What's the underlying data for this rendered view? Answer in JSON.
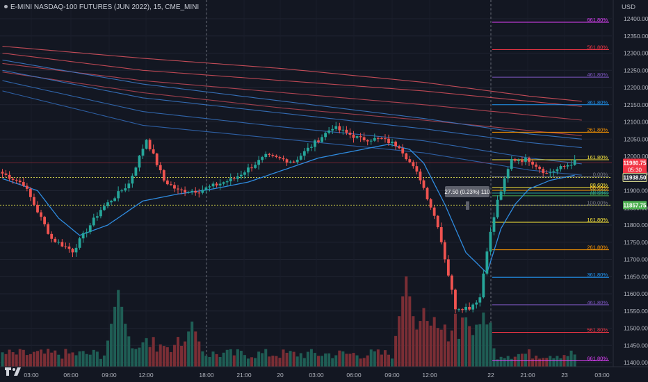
{
  "header": {
    "title": "E-MINI NASDAQ-100 FUTURES (JUN 2022), 15, CME_MINI",
    "currency": "USD"
  },
  "price_tags": [
    {
      "label": "11980.75",
      "sub": "05:30",
      "price": 11980.75,
      "bg": "#f23645"
    },
    {
      "label": "11938.50",
      "price": 11938.5,
      "bg": "#2a2e39",
      "border": "#d4d48a"
    },
    {
      "label": "11857.75",
      "price": 11857.75,
      "bg": "#4caf50"
    }
  ],
  "measure_label": "27.50 (0.23%) 110",
  "logo": "tradingview-logo",
  "chart_data": {
    "type": "candlestick",
    "title": "",
    "ylim": [
      11375,
      12425
    ],
    "y_ticks": [
      11400,
      11450,
      11500,
      11550,
      11600,
      11650,
      11700,
      11750,
      11800,
      11850,
      11900,
      11950,
      12000,
      12050,
      12100,
      12150,
      12200,
      12250,
      12300,
      12350,
      12400
    ],
    "x_ticks": [
      "03:00",
      "06:00",
      "09:00",
      "12:00",
      "18:00",
      "21:00",
      "20",
      "03:00",
      "06:00",
      "09:00",
      "12:00",
      "22",
      "21:00",
      "23",
      "03:00"
    ],
    "session_separators": [
      "18:00",
      "22"
    ],
    "horizontal_lines": [
      {
        "price": 11938.5,
        "style": "dotted",
        "color": "#c8c84a"
      },
      {
        "price": 11857.75,
        "style": "dotted",
        "color": "#c8c84a"
      }
    ],
    "price_waypoints": [
      {
        "i": 0,
        "p": 11950
      },
      {
        "i": 6,
        "p": 11920
      },
      {
        "i": 14,
        "p": 11760
      },
      {
        "i": 20,
        "p": 11725
      },
      {
        "i": 28,
        "p": 11845
      },
      {
        "i": 36,
        "p": 11920
      },
      {
        "i": 41,
        "p": 12050
      },
      {
        "i": 46,
        "p": 11930
      },
      {
        "i": 50,
        "p": 11900
      },
      {
        "i": 56,
        "p": 11900
      },
      {
        "i": 66,
        "p": 11935
      },
      {
        "i": 75,
        "p": 12000
      },
      {
        "i": 83,
        "p": 11985
      },
      {
        "i": 94,
        "p": 12085
      },
      {
        "i": 102,
        "p": 12050
      },
      {
        "i": 108,
        "p": 12050
      },
      {
        "i": 113,
        "p": 12030
      },
      {
        "i": 119,
        "p": 11935
      },
      {
        "i": 124,
        "p": 11800
      },
      {
        "i": 129,
        "p": 11560
      },
      {
        "i": 133,
        "p": 11560
      },
      {
        "i": 136,
        "p": 11590
      },
      {
        "i": 138,
        "p": 11730
      },
      {
        "i": 141,
        "p": 11870
      },
      {
        "i": 145,
        "p": 11990
      },
      {
        "i": 150,
        "p": 11990
      },
      {
        "i": 155,
        "p": 11950
      },
      {
        "i": 160,
        "p": 11970
      },
      {
        "i": 163,
        "p": 11985
      }
    ],
    "volume_peaks": [
      {
        "i": 33,
        "v": 0.85
      },
      {
        "i": 34,
        "v": 0.6
      },
      {
        "i": 54,
        "v": 0.5
      },
      {
        "i": 115,
        "v": 1.0
      },
      {
        "i": 120,
        "v": 0.65
      },
      {
        "i": 123,
        "v": 0.55
      },
      {
        "i": 135,
        "v": 0.45
      },
      {
        "i": 137,
        "v": 0.6
      }
    ],
    "fib_lines": [
      {
        "label": "661.80%",
        "price": 11405,
        "color": "#e040fb"
      },
      {
        "label": "561.80%",
        "price": 11488,
        "color": "#f23645"
      },
      {
        "label": "461.80%",
        "price": 11568,
        "color": "#7e57c2"
      },
      {
        "label": "361.80%",
        "price": 11648,
        "color": "#2196f3"
      },
      {
        "label": "261.80%",
        "price": 11728,
        "color": "#ff9800"
      },
      {
        "label": "161.80%",
        "price": 11808,
        "color": "#ffeb3b"
      },
      {
        "label": "100.00%",
        "price": 11857.75,
        "color": "#787b86"
      },
      {
        "label": "88.60%",
        "price": 11885,
        "color": "#4caf50"
      },
      {
        "label": "78.60%",
        "price": 11893,
        "color": "#26a69a"
      },
      {
        "label": "88.60%",
        "price": 11901,
        "color": "#ff9800"
      },
      {
        "label": "88.60%",
        "price": 11909,
        "color": "#ffeb3b"
      },
      {
        "label": "0.00%",
        "price": 11940,
        "color": "#787b86"
      },
      {
        "label": "161.80%",
        "price": 11990,
        "color": "#ffeb3b"
      },
      {
        "label": "261.80%",
        "price": 12070,
        "color": "#ff9800"
      },
      {
        "label": "361.80%",
        "price": 12150,
        "color": "#2196f3"
      },
      {
        "label": "461.80%",
        "price": 12230,
        "color": "#7e57c2"
      },
      {
        "label": "561.80%",
        "price": 12310,
        "color": "#f23645"
      },
      {
        "label": "661.80%",
        "price": 12390,
        "color": "#e040fb"
      }
    ],
    "bands": [
      {
        "color": "#e05560",
        "waypoints": [
          [
            0,
            12320
          ],
          [
            40,
            12285
          ],
          [
            80,
            12255
          ],
          [
            120,
            12215
          ],
          [
            150,
            12175
          ],
          [
            165,
            12160
          ]
        ]
      },
      {
        "color": "#d9505c",
        "waypoints": [
          [
            0,
            12300
          ],
          [
            40,
            12250
          ],
          [
            80,
            12220
          ],
          [
            120,
            12190
          ],
          [
            150,
            12160
          ],
          [
            165,
            12145
          ]
        ]
      },
      {
        "color": "#c64a58",
        "waypoints": [
          [
            0,
            12270
          ],
          [
            40,
            12220
          ],
          [
            80,
            12185
          ],
          [
            120,
            12150
          ],
          [
            150,
            12120
          ],
          [
            165,
            12105
          ]
        ]
      },
      {
        "color": "#b84654",
        "waypoints": [
          [
            0,
            12245
          ],
          [
            40,
            12185
          ],
          [
            80,
            12140
          ],
          [
            120,
            12105
          ],
          [
            150,
            12075
          ],
          [
            165,
            12060
          ]
        ]
      },
      {
        "color": "#3d7fd0",
        "waypoints": [
          [
            0,
            12280
          ],
          [
            40,
            12210
          ],
          [
            80,
            12160
          ],
          [
            120,
            12110
          ],
          [
            150,
            12065
          ],
          [
            165,
            12050
          ]
        ]
      },
      {
        "color": "#3a7acb",
        "waypoints": [
          [
            0,
            12250
          ],
          [
            40,
            12170
          ],
          [
            80,
            12125
          ],
          [
            120,
            12080
          ],
          [
            150,
            12040
          ],
          [
            165,
            12025
          ]
        ]
      },
      {
        "color": "#3673c2",
        "waypoints": [
          [
            0,
            12220
          ],
          [
            40,
            12130
          ],
          [
            80,
            12085
          ],
          [
            120,
            12045
          ],
          [
            150,
            11995
          ],
          [
            165,
            11978
          ]
        ]
      },
      {
        "color": "#326bb8",
        "waypoints": [
          [
            0,
            12190
          ],
          [
            40,
            12090
          ],
          [
            80,
            12050
          ],
          [
            120,
            12010
          ],
          [
            150,
            11960
          ],
          [
            165,
            11945
          ]
        ]
      }
    ],
    "ma_line": {
      "color": "#2f8ce0",
      "waypoints": [
        [
          0,
          11935
        ],
        [
          10,
          11900
        ],
        [
          16,
          11820
        ],
        [
          22,
          11770
        ],
        [
          30,
          11800
        ],
        [
          40,
          11870
        ],
        [
          50,
          11890
        ],
        [
          60,
          11905
        ],
        [
          70,
          11925
        ],
        [
          80,
          11960
        ],
        [
          90,
          11995
        ],
        [
          100,
          12015
        ],
        [
          110,
          12035
        ],
        [
          116,
          12020
        ],
        [
          120,
          11980
        ],
        [
          126,
          11860
        ],
        [
          132,
          11720
        ],
        [
          138,
          11660
        ],
        [
          142,
          11790
        ],
        [
          146,
          11860
        ],
        [
          150,
          11905
        ],
        [
          156,
          11930
        ],
        [
          163,
          11945
        ]
      ]
    }
  }
}
